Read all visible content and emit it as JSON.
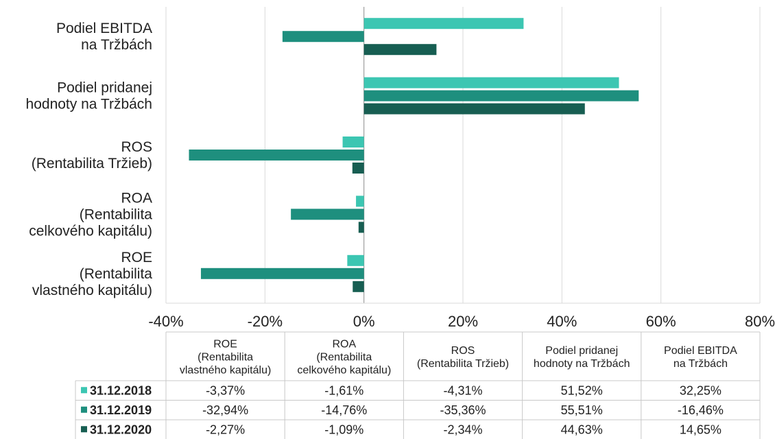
{
  "chart_data": {
    "type": "bar",
    "orientation": "horizontal",
    "categories": [
      "Podiel EBITDA na Tržbách",
      "Podiel pridanej hodnoty na Tržbách",
      "ROS (Rentabilita Tržieb)",
      "ROA (Rentabilita celkového kapitálu)",
      "ROE (Rentabilita vlastného kapitálu)"
    ],
    "category_lines": [
      [
        "Podiel EBITDA",
        "na Tržbách"
      ],
      [
        "Podiel pridanej",
        "hodnoty na Tržbách"
      ],
      [
        "ROS",
        "(Rentabilita Tržieb)"
      ],
      [
        "ROA",
        "(Rentabilita",
        "celkového kapitálu)"
      ],
      [
        "ROE",
        "(Rentabilita",
        "vlastného kapitálu)"
      ]
    ],
    "series": [
      {
        "name": "31.12.2018",
        "color": "#3cc6b2",
        "values": [
          32.25,
          51.52,
          -4.31,
          -1.61,
          -3.37
        ]
      },
      {
        "name": "31.12.2019",
        "color": "#1e8f7e",
        "values": [
          -16.46,
          55.51,
          -35.36,
          -14.76,
          -32.94
        ]
      },
      {
        "name": "31.12.2020",
        "color": "#175e52",
        "values": [
          14.65,
          44.63,
          -2.34,
          -1.09,
          -2.27
        ]
      }
    ],
    "xlim": [
      -40,
      80
    ],
    "x_ticks": [
      -40,
      -20,
      0,
      20,
      40,
      60,
      80
    ],
    "x_tick_labels": [
      "-40%",
      "-20%",
      "0%",
      "20%",
      "40%",
      "60%",
      "80%"
    ],
    "grid": true,
    "legend_placement": "data-table",
    "data_table": {
      "headers": [
        [
          "ROE",
          "(Rentabilita",
          "vlastného kapitálu)"
        ],
        [
          "ROA",
          "(Rentabilita",
          "celkového kapitálu)"
        ],
        [
          "ROS",
          "(Rentabilita Tržieb)"
        ],
        [
          "Podiel pridanej",
          "hodnoty na Tržbách"
        ],
        [
          "Podiel EBITDA",
          "na Tržbách"
        ]
      ],
      "rows": [
        {
          "label": "31.12.2018",
          "values": [
            "-3,37%",
            "-1,61%",
            "-4,31%",
            "51,52%",
            "32,25%"
          ]
        },
        {
          "label": "31.12.2019",
          "values": [
            "-32,94%",
            "-14,76%",
            "-35,36%",
            "55,51%",
            "-16,46%"
          ]
        },
        {
          "label": "31.12.2020",
          "values": [
            "-2,27%",
            "-1,09%",
            "-2,34%",
            "44,63%",
            "14,65%"
          ]
        }
      ]
    }
  }
}
